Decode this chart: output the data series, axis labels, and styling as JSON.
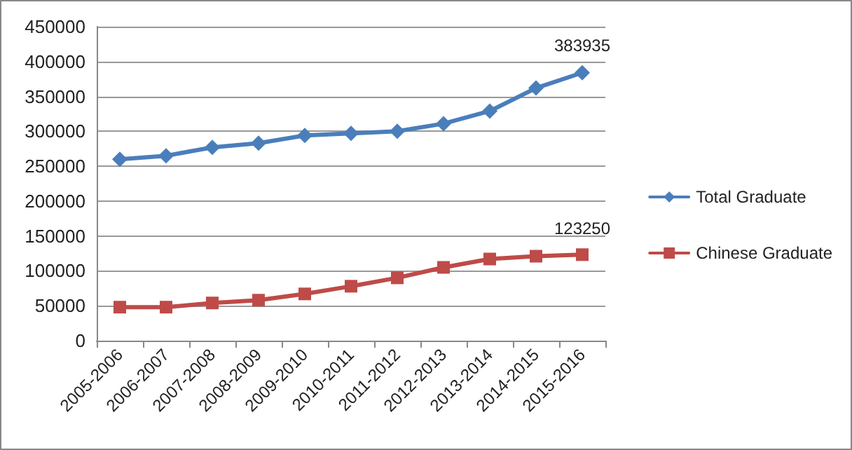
{
  "chart_data": {
    "type": "line",
    "categories": [
      "2005-2006",
      "2006-2007",
      "2007-2008",
      "2008-2009",
      "2009-2010",
      "2010-2011",
      "2011-2012",
      "2012-2013",
      "2013-2014",
      "2014-2015",
      "2015-2016"
    ],
    "series": [
      {
        "name": "Total Graduate",
        "color": "#4a7ebb",
        "marker": "diamond",
        "values": [
          260000,
          265000,
          277000,
          283000,
          294000,
          297000,
          300000,
          311000,
          329000,
          362000,
          383935
        ],
        "value_labels": [
          null,
          null,
          null,
          null,
          null,
          null,
          null,
          null,
          null,
          null,
          "383935"
        ]
      },
      {
        "name": "Chinese Graduate",
        "color": "#be4b48",
        "marker": "square",
        "values": [
          48000,
          48000,
          54000,
          58000,
          67000,
          78000,
          90000,
          105000,
          117000,
          121000,
          123250
        ],
        "value_labels": [
          null,
          null,
          null,
          null,
          null,
          null,
          null,
          null,
          null,
          null,
          "123250"
        ]
      }
    ],
    "ylim": [
      0,
      450000
    ],
    "yticks": [
      0,
      50000,
      100000,
      150000,
      200000,
      250000,
      300000,
      350000,
      400000,
      450000
    ],
    "grid": "y",
    "legend": "right",
    "line_style": "solid"
  }
}
